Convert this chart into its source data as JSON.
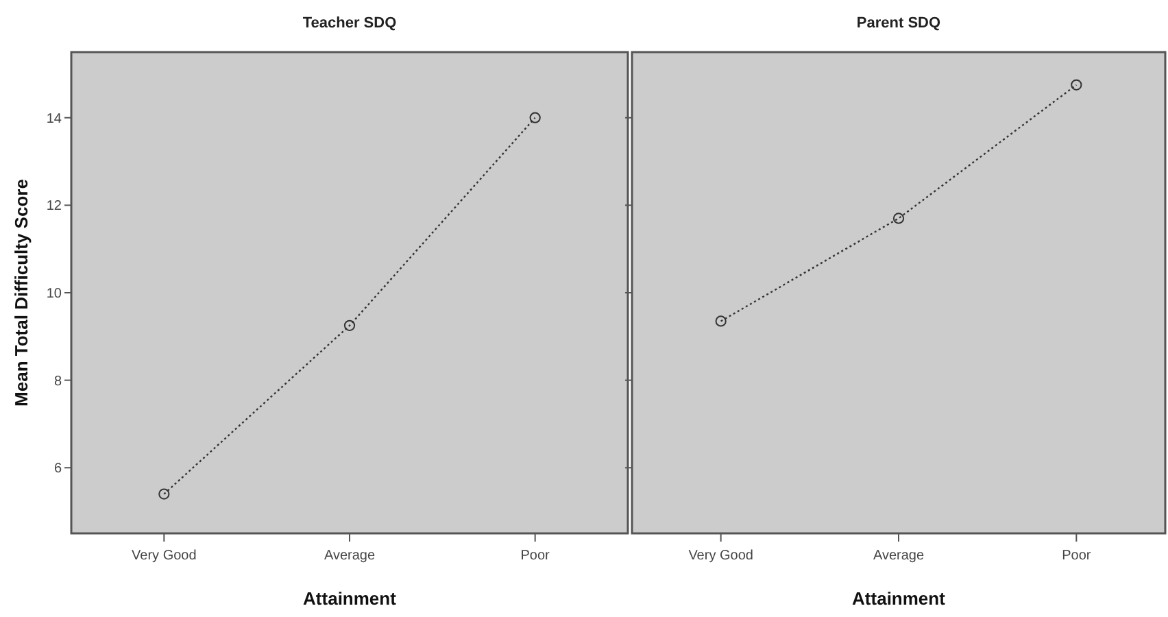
{
  "chart_data": [
    {
      "type": "line",
      "title": "Teacher SDQ",
      "xlabel": "Attainment",
      "ylabel": "Mean Total Difficulty Score",
      "categories": [
        "Very Good",
        "Average",
        "Poor"
      ],
      "series": [
        {
          "color": "#333333",
          "values": [
            5.4,
            9.25,
            14.0
          ]
        }
      ],
      "ylim": [
        4.5,
        15.5
      ],
      "yticks": [
        6,
        8,
        10,
        12,
        14
      ],
      "marker": "circle",
      "line_style": "dotted",
      "grid": false
    },
    {
      "type": "line",
      "title": "Parent SDQ",
      "xlabel": "Attainment",
      "categories": [
        "Very Good",
        "Average",
        "Poor"
      ],
      "series": [
        {
          "color": "#333333",
          "values": [
            9.35,
            11.7,
            14.75
          ]
        }
      ],
      "ylim": [
        4.5,
        15.5
      ],
      "yticks": [
        6,
        8,
        10,
        12,
        14
      ],
      "marker": "circle",
      "line_style": "dotted",
      "grid": false,
      "tick_labels": "x"
    }
  ]
}
